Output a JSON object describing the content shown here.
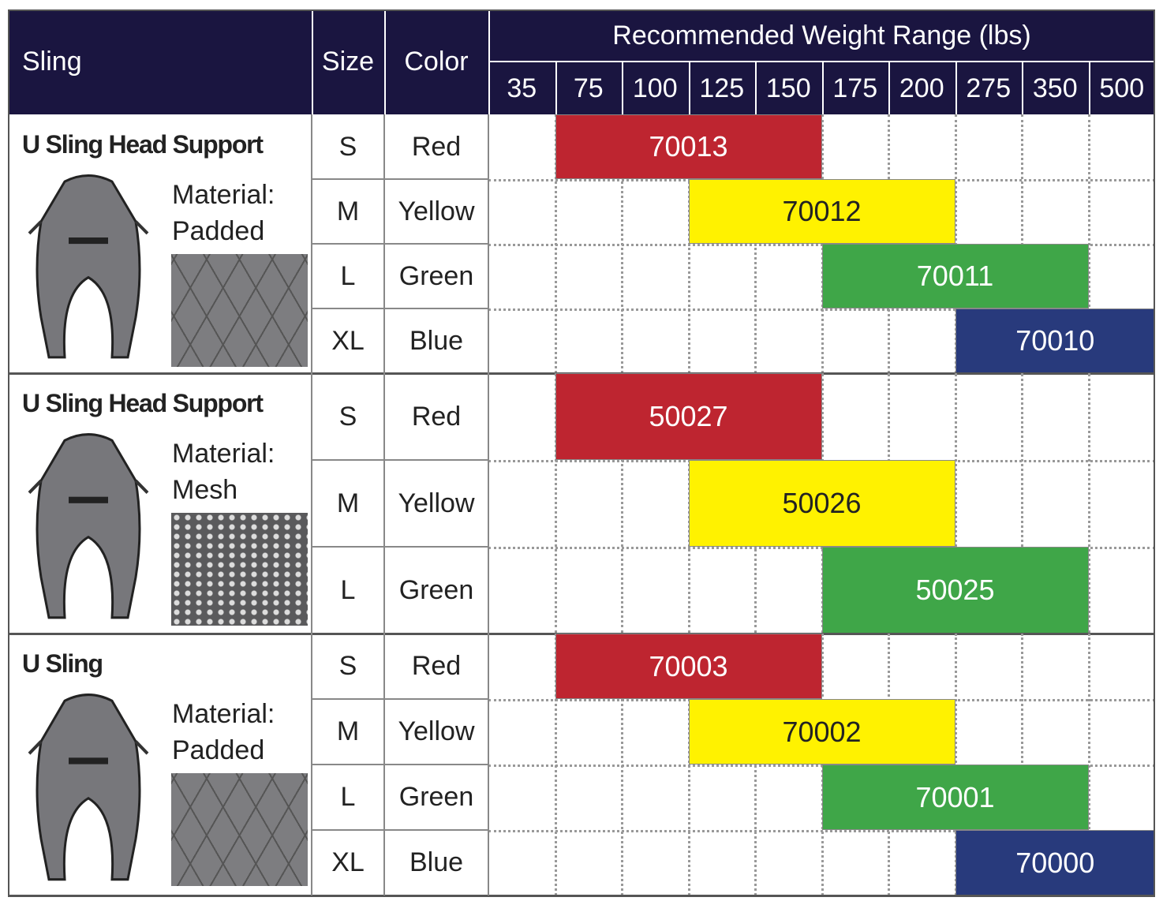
{
  "header": {
    "sling": "Sling",
    "size": "Size",
    "color": "Color",
    "weight_range": "Recommended Weight Range (lbs)",
    "weights": [
      "35",
      "75",
      "100",
      "125",
      "150",
      "175",
      "200",
      "275",
      "350",
      "500"
    ]
  },
  "groups": [
    {
      "name": "U Sling Head Support",
      "material_label": "Material:",
      "material": "Padded",
      "rows": [
        {
          "size": "S",
          "color": "Red",
          "code": "70013",
          "start": 1,
          "end": 4,
          "fill": "#be2530",
          "text_color": "#ffffff"
        },
        {
          "size": "M",
          "color": "Yellow",
          "code": "70012",
          "start": 3,
          "end": 6,
          "fill": "#fff200",
          "text_color": "#222222"
        },
        {
          "size": "L",
          "color": "Green",
          "code": "70011",
          "start": 5,
          "end": 8,
          "fill": "#3fa648",
          "text_color": "#ffffff"
        },
        {
          "size": "XL",
          "color": "Blue",
          "code": "70010",
          "start": 7,
          "end": 9,
          "fill": "#283a7c",
          "text_color": "#ffffff"
        }
      ]
    },
    {
      "name": "U Sling Head Support",
      "material_label": "Material:",
      "material": "Mesh",
      "rows": [
        {
          "size": "S",
          "color": "Red",
          "code": "50027",
          "start": 1,
          "end": 4,
          "fill": "#be2530",
          "text_color": "#ffffff"
        },
        {
          "size": "M",
          "color": "Yellow",
          "code": "50026",
          "start": 3,
          "end": 6,
          "fill": "#fff200",
          "text_color": "#222222"
        },
        {
          "size": "L",
          "color": "Green",
          "code": "50025",
          "start": 5,
          "end": 8,
          "fill": "#3fa648",
          "text_color": "#ffffff"
        }
      ]
    },
    {
      "name": "U Sling",
      "material_label": "Material:",
      "material": "Padded",
      "rows": [
        {
          "size": "S",
          "color": "Red",
          "code": "70003",
          "start": 1,
          "end": 4,
          "fill": "#be2530",
          "text_color": "#ffffff"
        },
        {
          "size": "M",
          "color": "Yellow",
          "code": "70002",
          "start": 3,
          "end": 6,
          "fill": "#fff200",
          "text_color": "#222222"
        },
        {
          "size": "L",
          "color": "Green",
          "code": "70001",
          "start": 5,
          "end": 8,
          "fill": "#3fa648",
          "text_color": "#ffffff"
        },
        {
          "size": "XL",
          "color": "Blue",
          "code": "70000",
          "start": 7,
          "end": 9,
          "fill": "#283a7c",
          "text_color": "#ffffff"
        }
      ]
    }
  ]
}
